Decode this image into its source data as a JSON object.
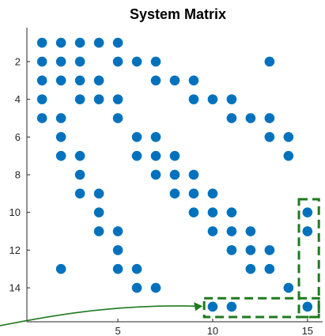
{
  "chart_data": {
    "type": "scatter",
    "title": "System Matrix",
    "xlabel": "",
    "ylabel": "",
    "xlim": [
      0.2,
      15.8
    ],
    "ylim": [
      15.8,
      0.2
    ],
    "y_reversed": true,
    "xticks": [
      5,
      10,
      15
    ],
    "yticks": [
      2,
      4,
      6,
      8,
      10,
      12,
      14
    ],
    "grid": false,
    "marker_color": "#0072BD",
    "highlight_color": "#1E7A1E",
    "points": [
      {
        "row": 1,
        "cols": [
          1,
          2,
          3,
          4,
          5
        ]
      },
      {
        "row": 2,
        "cols": [
          1,
          2,
          3,
          5,
          6,
          7,
          13
        ]
      },
      {
        "row": 3,
        "cols": [
          1,
          2,
          3,
          4,
          7,
          8,
          9
        ]
      },
      {
        "row": 4,
        "cols": [
          1,
          3,
          4,
          5,
          9,
          10,
          11
        ]
      },
      {
        "row": 5,
        "cols": [
          1,
          2,
          5,
          11,
          12,
          13
        ]
      },
      {
        "row": 6,
        "cols": [
          2,
          6,
          7,
          13,
          14
        ]
      },
      {
        "row": 7,
        "cols": [
          2,
          3,
          6,
          7,
          8,
          14
        ]
      },
      {
        "row": 8,
        "cols": [
          3,
          7,
          8,
          9
        ]
      },
      {
        "row": 9,
        "cols": [
          3,
          4,
          8,
          9,
          10
        ]
      },
      {
        "row": 10,
        "cols": [
          4,
          9,
          10,
          11,
          15
        ]
      },
      {
        "row": 11,
        "cols": [
          4,
          5,
          10,
          11,
          12,
          15
        ]
      },
      {
        "row": 12,
        "cols": [
          5,
          11,
          12,
          13
        ]
      },
      {
        "row": 13,
        "cols": [
          2,
          5,
          6,
          12,
          13
        ]
      },
      {
        "row": 14,
        "cols": [
          6,
          7,
          14
        ]
      },
      {
        "row": 15,
        "cols": [
          10,
          11,
          15
        ]
      }
    ],
    "annotations": [
      {
        "type": "dashed-box",
        "x_range": [
          9.55,
          15.6
        ],
        "y_range": [
          14.55,
          15.55
        ]
      },
      {
        "type": "dashed-box",
        "x_range": [
          14.55,
          15.6
        ],
        "y_range": [
          9.3,
          15.55
        ]
      },
      {
        "type": "arrow",
        "direction": "into horizontal dashed box from left"
      }
    ]
  }
}
